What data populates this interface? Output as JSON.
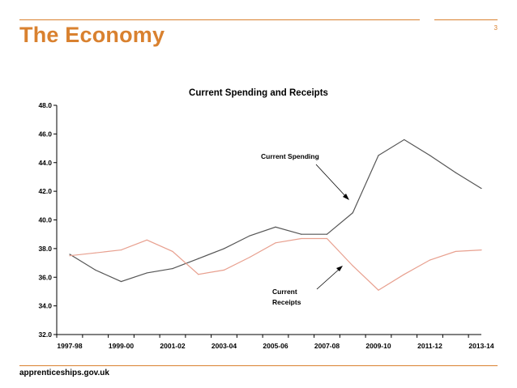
{
  "slide": {
    "title": "The Economy",
    "page_number": "3",
    "footer": "apprenticeships.gov.uk",
    "accent_color": "#d9812f"
  },
  "chart_data": {
    "type": "line",
    "title": "Current Spending and Receipts",
    "xlabel": "",
    "ylabel": "",
    "ylim": [
      32.0,
      48.0
    ],
    "yticks": [
      "32.0",
      "34.0",
      "36.0",
      "38.0",
      "40.0",
      "42.0",
      "44.0",
      "46.0",
      "48.0"
    ],
    "x_tick_labels": [
      "1997-98",
      "1999-00",
      "2001-02",
      "2003-04",
      "2005-06",
      "2007-08",
      "2009-10",
      "2011-12",
      "2013-14"
    ],
    "x": [
      "1997-98",
      "1998-99",
      "1999-00",
      "2000-01",
      "2001-02",
      "2002-03",
      "2003-04",
      "2004-05",
      "2005-06",
      "2006-07",
      "2007-08",
      "2008-09",
      "2009-10",
      "2010-11",
      "2011-12",
      "2012-13",
      "2013-14"
    ],
    "grid": false,
    "series": [
      {
        "name": "Current Spending",
        "color": "#555555",
        "values": [
          37.6,
          36.5,
          35.7,
          36.3,
          36.6,
          37.3,
          38.0,
          38.9,
          39.5,
          39.0,
          39.0,
          40.5,
          44.5,
          45.6,
          44.5,
          43.3,
          42.2
        ]
      },
      {
        "name": "Current Receipts",
        "color": "#e8a08f",
        "values": [
          37.5,
          37.7,
          37.9,
          38.6,
          37.8,
          36.2,
          36.5,
          37.4,
          38.4,
          38.7,
          38.7,
          36.8,
          35.1,
          36.2,
          37.2,
          37.8,
          37.9
        ]
      }
    ],
    "annotations": [
      {
        "text": "Current Spending"
      },
      {
        "lines": [
          "Current",
          "Receipts"
        ]
      }
    ]
  }
}
